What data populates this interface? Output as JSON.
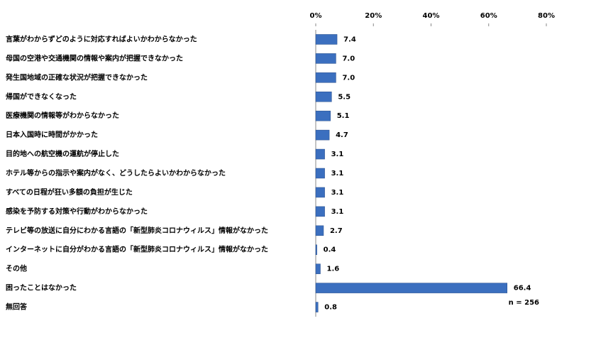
{
  "chart_data": {
    "type": "bar",
    "orientation": "horizontal",
    "categories": [
      "言葉がわからずどのように対応すればよいかわからなかった",
      "母国の空港や交通機関の情報や案内が把握できなかった",
      "発生国地域の正確な状況が把握できなかった",
      "帰国ができなくなった",
      "医療機関の情報等がわからなかった",
      "日本入国時に時間がかかった",
      "目的地への航空機の運航が停止した",
      "ホテル等からの指示や案内がなく、どうしたらよいかわからなかった",
      "すべての日程が狂い多額の負担が生じた",
      "感染を予防する対策や行動がわからなかった",
      "テレビ等の放送に自分にわかる言語の「新型肺炎コロナウィルス」情報がなかった",
      "インターネットに自分がわかる言語の「新型肺炎コロナウィルス」情報がなかった",
      "その他",
      "困ったことはなかった",
      "無回答"
    ],
    "values": [
      7.4,
      7.0,
      7.0,
      5.5,
      5.1,
      4.7,
      3.1,
      3.1,
      3.1,
      3.1,
      2.7,
      0.4,
      1.6,
      66.4,
      0.8
    ],
    "value_labels": [
      "7.4",
      "7.0",
      "7.0",
      "5.5",
      "5.1",
      "4.7",
      "3.1",
      "3.1",
      "3.1",
      "3.1",
      "2.7",
      "0.4",
      "1.6",
      "66.4",
      "0.8"
    ],
    "color": "#3b6fbf",
    "xlim": [
      0,
      80
    ],
    "xticks": [
      {
        "value": 0,
        "label": "0%"
      },
      {
        "value": 20,
        "label": "20%"
      },
      {
        "value": 40,
        "label": "40%"
      },
      {
        "value": 60,
        "label": "60%"
      },
      {
        "value": 80,
        "label": "80%"
      }
    ],
    "annotation": "n = 256"
  }
}
